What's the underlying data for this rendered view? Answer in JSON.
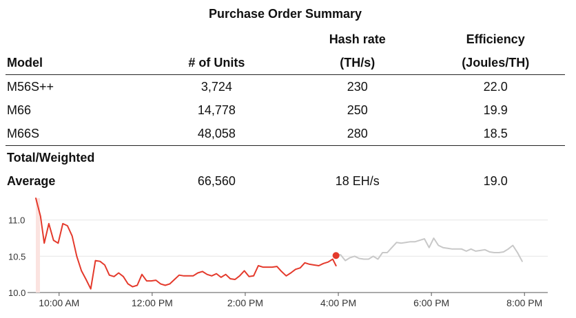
{
  "title": "Purchase Order Summary",
  "table": {
    "headers": {
      "model": "Model",
      "units": "# of Units",
      "hash_line1": "Hash rate",
      "hash_line2": "(TH/s)",
      "eff_line1": "Efficiency",
      "eff_line2": "(Joules/TH)"
    },
    "rows": [
      {
        "model": "M56S++",
        "units": "3,724",
        "hash": "230",
        "eff": "22.0"
      },
      {
        "model": "M66",
        "units": "14,778",
        "hash": "250",
        "eff": "19.9"
      },
      {
        "model": "M66S",
        "units": "48,058",
        "hash": "280",
        "eff": "18.5"
      }
    ],
    "total": {
      "label_line1": "Total/Weighted",
      "label_line2": "Average",
      "units": "66,560",
      "hash": "18 EH/s",
      "eff": "19.0"
    }
  },
  "chart_data": {
    "type": "line",
    "y_ticks": [
      10.0,
      10.5,
      11.0
    ],
    "y_tick_labels": [
      "10.0",
      "10.5",
      "11.0"
    ],
    "ylim": [
      10.0,
      11.3
    ],
    "xlim": [
      9.5,
      20.5
    ],
    "x_ticks": [
      10,
      12,
      14,
      16,
      18,
      20
    ],
    "x_tick_labels": [
      "10:00 AM",
      "12:00 PM",
      "2:00 PM",
      "4:00 PM",
      "6:00 PM",
      "8:00 PM"
    ],
    "colors": {
      "today": "#e4392b",
      "previous": "#c8c8c8",
      "grid": "#e6e6e6",
      "axis": "#555555"
    },
    "current_point": {
      "x": 15.95,
      "y": 10.51
    },
    "series": [
      {
        "name": "today",
        "x": [
          9.5,
          9.6,
          9.68,
          9.78,
          9.88,
          9.98,
          10.08,
          10.18,
          10.28,
          10.38,
          10.48,
          10.58,
          10.68,
          10.78,
          10.88,
          10.98,
          11.08,
          11.18,
          11.28,
          11.38,
          11.48,
          11.58,
          11.68,
          11.78,
          11.88,
          11.98,
          12.08,
          12.18,
          12.28,
          12.38,
          12.48,
          12.58,
          12.68,
          12.78,
          12.88,
          12.98,
          13.08,
          13.18,
          13.28,
          13.38,
          13.48,
          13.58,
          13.68,
          13.78,
          13.88,
          13.98,
          14.08,
          14.18,
          14.28,
          14.38,
          14.48,
          14.58,
          14.68,
          14.78,
          14.88,
          14.98,
          15.08,
          15.18,
          15.28,
          15.38,
          15.48,
          15.58,
          15.68,
          15.78,
          15.88,
          15.95
        ],
        "y": [
          11.3,
          11.05,
          10.68,
          10.95,
          10.72,
          10.68,
          10.95,
          10.92,
          10.78,
          10.5,
          10.3,
          10.18,
          10.05,
          10.44,
          10.43,
          10.38,
          10.24,
          10.22,
          10.27,
          10.22,
          10.12,
          10.08,
          10.1,
          10.25,
          10.16,
          10.16,
          10.17,
          10.12,
          10.1,
          10.12,
          10.18,
          10.24,
          10.23,
          10.23,
          10.23,
          10.27,
          10.29,
          10.25,
          10.23,
          10.26,
          10.21,
          10.25,
          10.19,
          10.18,
          10.23,
          10.3,
          10.22,
          10.23,
          10.37,
          10.35,
          10.35,
          10.35,
          10.36,
          10.29,
          10.23,
          10.27,
          10.32,
          10.34,
          10.41,
          10.39,
          10.38,
          10.37,
          10.4,
          10.42,
          10.46,
          10.37
        ]
      },
      {
        "name": "previous",
        "x": [
          15.95,
          16.05,
          16.15,
          16.25,
          16.35,
          16.45,
          16.55,
          16.65,
          16.75,
          16.85,
          16.95,
          17.05,
          17.15,
          17.25,
          17.35,
          17.45,
          17.55,
          17.65,
          17.75,
          17.85,
          17.95,
          18.05,
          18.15,
          18.25,
          18.35,
          18.45,
          18.55,
          18.65,
          18.75,
          18.85,
          18.95,
          19.05,
          19.15,
          19.25,
          19.35,
          19.45,
          19.55,
          19.65,
          19.75,
          19.85,
          19.95
        ],
        "y": [
          10.52,
          10.52,
          10.44,
          10.48,
          10.5,
          10.47,
          10.46,
          10.46,
          10.5,
          10.46,
          10.55,
          10.55,
          10.62,
          10.69,
          10.68,
          10.69,
          10.7,
          10.7,
          10.72,
          10.74,
          10.62,
          10.75,
          10.65,
          10.62,
          10.61,
          10.6,
          10.6,
          10.6,
          10.57,
          10.6,
          10.57,
          10.58,
          10.59,
          10.56,
          10.55,
          10.55,
          10.56,
          10.6,
          10.65,
          10.55,
          10.43
        ]
      }
    ]
  }
}
